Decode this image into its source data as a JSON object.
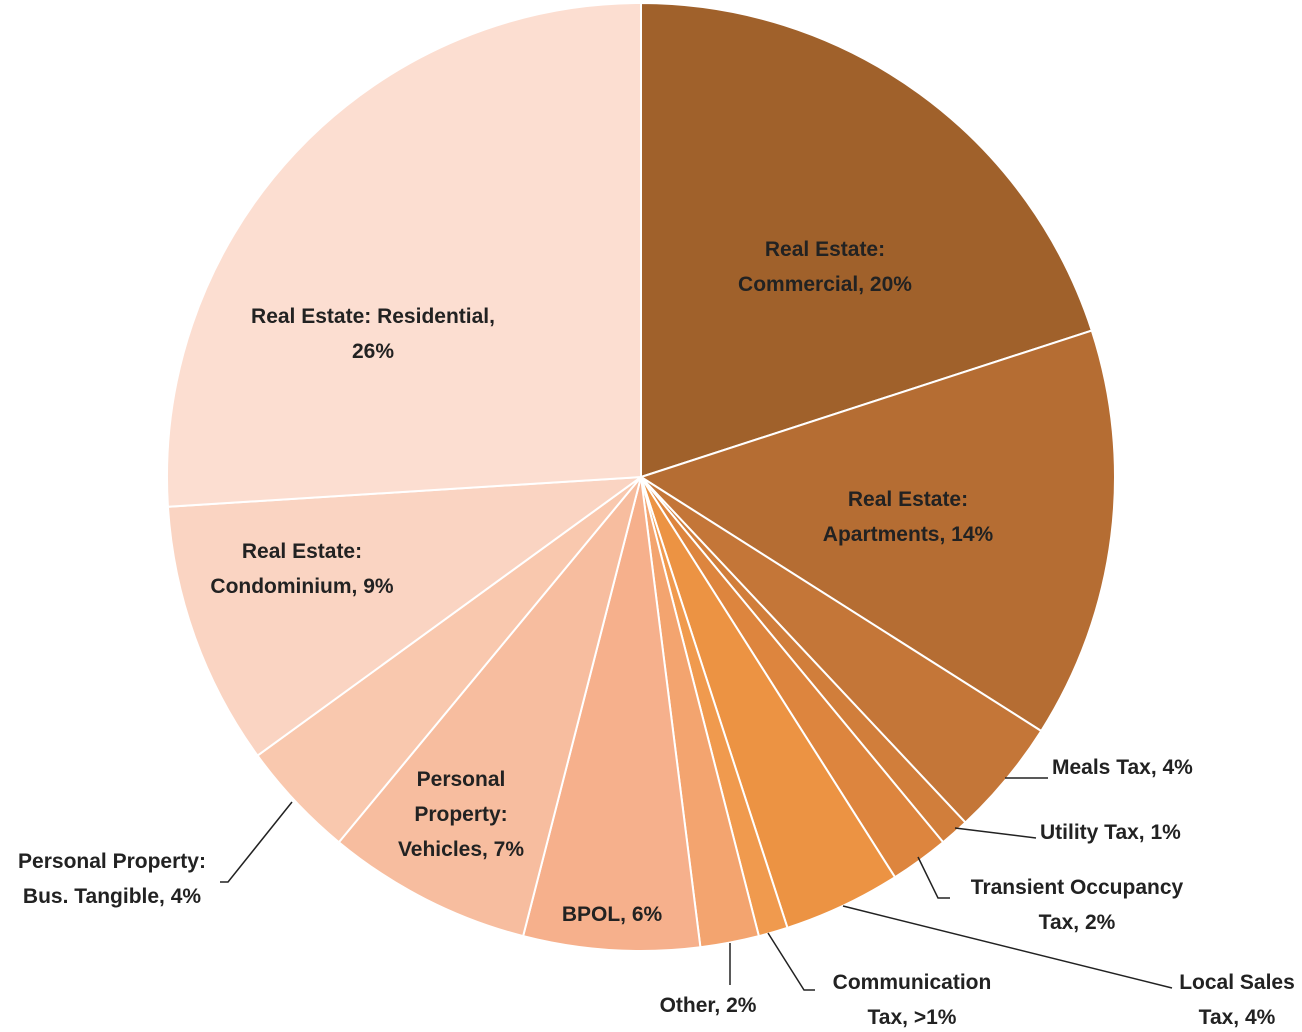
{
  "chart_data": {
    "type": "pie",
    "values": [
      20,
      14,
      4,
      1,
      2,
      4,
      1,
      2,
      6,
      7,
      4,
      9,
      26
    ],
    "value_labels": [
      [
        "Real Estate:",
        "Commercial, 20%"
      ],
      [
        "Real Estate:",
        "Apartments, 14%"
      ],
      [
        "Meals Tax, 4%"
      ],
      [
        "Utility Tax, 1%"
      ],
      [
        "Transient Occupancy",
        "Tax, 2%"
      ],
      [
        "Local Sales",
        "Tax, 4%"
      ],
      [
        "Communication",
        "Tax, >1%"
      ],
      [
        "Other, 2%"
      ],
      [
        "BPOL, 6%"
      ],
      [
        "Personal",
        "Property:",
        "Vehicles, 7%"
      ],
      [
        "Personal Property:",
        "Bus. Tangible, 4%"
      ],
      [
        "Real Estate:",
        "Condominium, 9%"
      ],
      [
        "Real Estate: Residential,",
        "26%"
      ]
    ],
    "colors": [
      "#a0612b",
      "#b56d33",
      "#c47638",
      "#d17e3b",
      "#dd853e",
      "#ec9343",
      "#f09a4e",
      "#f3a46f",
      "#f6b08c",
      "#f7bd9f",
      "#f9c8ae",
      "#fad4c2",
      "#fcded1"
    ]
  }
}
